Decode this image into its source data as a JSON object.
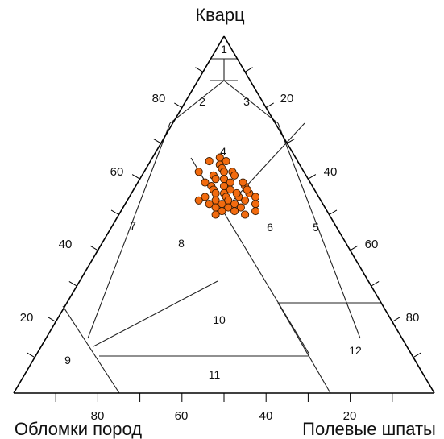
{
  "chart_data": {
    "type": "ternary-scatter",
    "vertices": {
      "top": "Кварц",
      "left": "Обломки пород",
      "right": "Полевые шпаты"
    },
    "axis_ticks": {
      "left_edge": [
        "20",
        "40",
        "60",
        "80"
      ],
      "right_edge": [
        "20",
        "40",
        "60",
        "80"
      ],
      "bottom_edge": [
        "80",
        "60",
        "40",
        "20"
      ]
    },
    "field_labels": [
      "1",
      "2",
      "3",
      "4",
      "5",
      "6",
      "7",
      "8",
      "9",
      "10",
      "11",
      "12"
    ],
    "points_qfr": [
      [
        0.65,
        0.18,
        0.17
      ],
      [
        0.66,
        0.16,
        0.18
      ],
      [
        0.64,
        0.17,
        0.19
      ],
      [
        0.65,
        0.14,
        0.21
      ],
      [
        0.63,
        0.18,
        0.19
      ],
      [
        0.62,
        0.21,
        0.17
      ],
      [
        0.62,
        0.19,
        0.19
      ],
      [
        0.61,
        0.17,
        0.22
      ],
      [
        0.62,
        0.13,
        0.25
      ],
      [
        0.61,
        0.22,
        0.17
      ],
      [
        0.6,
        0.2,
        0.2
      ],
      [
        0.59,
        0.22,
        0.19
      ],
      [
        0.6,
        0.18,
        0.22
      ],
      [
        0.59,
        0.16,
        0.25
      ],
      [
        0.58,
        0.18,
        0.24
      ],
      [
        0.58,
        0.21,
        0.21
      ],
      [
        0.57,
        0.23,
        0.2
      ],
      [
        0.58,
        0.26,
        0.16
      ],
      [
        0.59,
        0.25,
        0.16
      ],
      [
        0.57,
        0.19,
        0.24
      ],
      [
        0.56,
        0.22,
        0.22
      ],
      [
        0.55,
        0.26,
        0.19
      ],
      [
        0.56,
        0.25,
        0.19
      ],
      [
        0.55,
        0.23,
        0.22
      ],
      [
        0.56,
        0.2,
        0.24
      ],
      [
        0.55,
        0.18,
        0.27
      ],
      [
        0.54,
        0.24,
        0.22
      ],
      [
        0.54,
        0.21,
        0.25
      ],
      [
        0.53,
        0.26,
        0.21
      ],
      [
        0.53,
        0.23,
        0.24
      ],
      [
        0.53,
        0.2,
        0.27
      ],
      [
        0.52,
        0.25,
        0.23
      ],
      [
        0.52,
        0.22,
        0.26
      ],
      [
        0.52,
        0.28,
        0.2
      ],
      [
        0.54,
        0.28,
        0.18
      ],
      [
        0.56,
        0.28,
        0.16
      ],
      [
        0.57,
        0.27,
        0.16
      ],
      [
        0.51,
        0.24,
        0.25
      ],
      [
        0.51,
        0.27,
        0.22
      ],
      [
        0.5,
        0.3,
        0.2
      ],
      [
        0.53,
        0.31,
        0.16
      ],
      [
        0.55,
        0.3,
        0.15
      ],
      [
        0.54,
        0.17,
        0.29
      ],
      [
        0.5,
        0.23,
        0.27
      ],
      [
        0.51,
        0.32,
        0.17
      ]
    ]
  }
}
